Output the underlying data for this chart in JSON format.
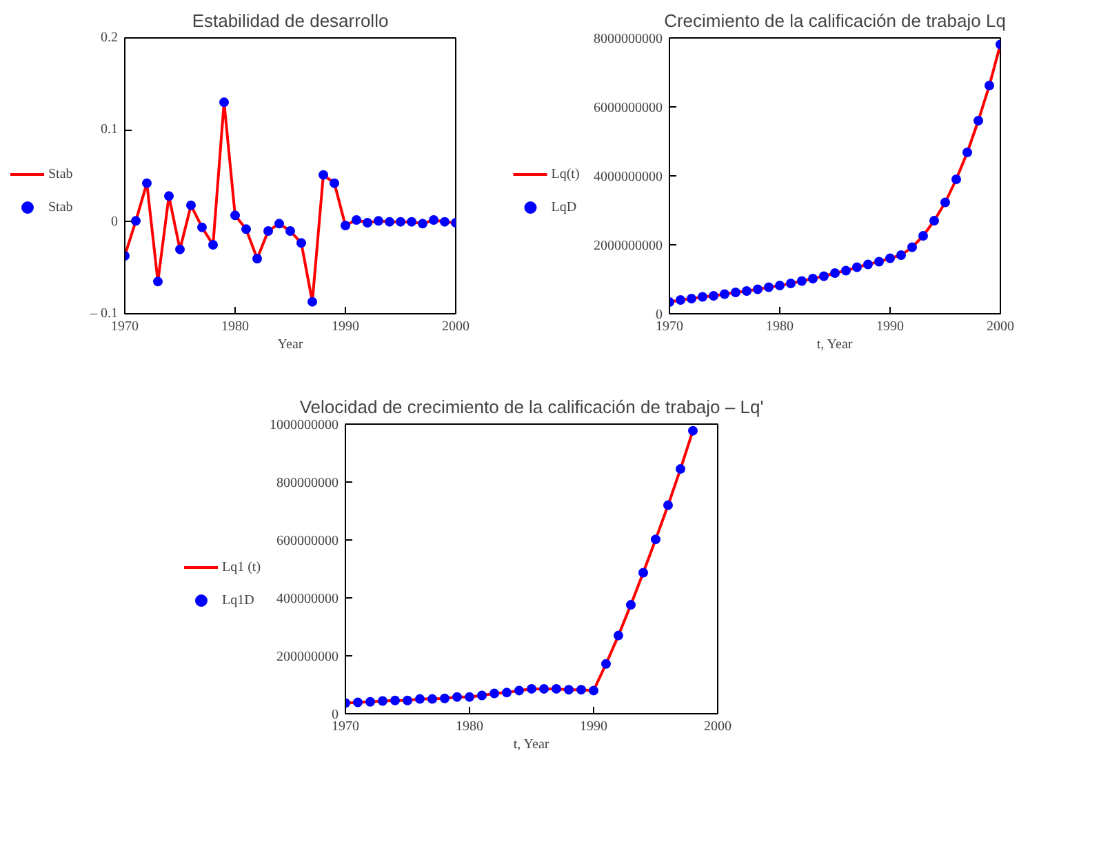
{
  "chart_data": [
    {
      "type": "line",
      "title": "Estabilidad de desarrollo",
      "xlabel": "Year",
      "x": [
        1970,
        1971,
        1972,
        1973,
        1974,
        1975,
        1976,
        1977,
        1978,
        1979,
        1980,
        1981,
        1982,
        1983,
        1984,
        1985,
        1986,
        1987,
        1988,
        1989,
        1990,
        1991,
        1992,
        1993,
        1994,
        1995,
        1996,
        1997,
        1998,
        1999,
        2000
      ],
      "series": [
        {
          "name": "Stab",
          "color": "#ff0000",
          "values": [
            -0.037,
            0.001,
            0.042,
            -0.065,
            0.028,
            -0.03,
            0.018,
            -0.006,
            -0.025,
            0.13,
            0.007,
            -0.008,
            -0.04,
            -0.01,
            -0.002,
            -0.01,
            -0.023,
            -0.087,
            0.051,
            0.042,
            -0.004,
            0.002,
            -0.001,
            0.001,
            0,
            0,
            0,
            -0.002,
            0.002,
            0,
            -0.001
          ]
        },
        {
          "name": "Stab",
          "type": "scatter",
          "marker": "circle",
          "color": "#0000ff",
          "values": [
            -0.037,
            0.001,
            0.042,
            -0.065,
            0.028,
            -0.03,
            0.018,
            -0.006,
            -0.025,
            0.13,
            0.007,
            -0.008,
            -0.04,
            -0.01,
            -0.002,
            -0.01,
            -0.023,
            -0.087,
            0.051,
            0.042,
            -0.004,
            0.002,
            -0.001,
            0.001,
            0,
            0,
            0,
            -0.002,
            0.002,
            0,
            -0.001
          ]
        }
      ],
      "xlim": [
        1970,
        2000
      ],
      "xticks": [
        1970,
        1980,
        1990,
        2000
      ],
      "ylim": [
        -0.1,
        0.2
      ],
      "yticks": [
        {
          "value": -0.1,
          "label": "– 0.1"
        },
        0,
        0.1,
        0.2
      ],
      "grid": false,
      "legend": "left",
      "line_style": "solid"
    },
    {
      "type": "line",
      "title": "Crecimiento de la calificación de trabajo Lq",
      "xlabel": "t, Year",
      "x": [
        1970,
        1971,
        1972,
        1973,
        1974,
        1975,
        1976,
        1977,
        1978,
        1979,
        1980,
        1981,
        1982,
        1983,
        1984,
        1985,
        1986,
        1987,
        1988,
        1989,
        1990,
        1991,
        1992,
        1993,
        1994,
        1995,
        1996,
        1997,
        1998,
        1999,
        2000
      ],
      "series": [
        {
          "name": "Lq(t)",
          "color": "#ff0000",
          "values": [
            340000000,
            400000000,
            440000000,
            490000000,
            520000000,
            570000000,
            620000000,
            660000000,
            710000000,
            770000000,
            820000000,
            880000000,
            950000000,
            1020000000,
            1090000000,
            1180000000,
            1250000000,
            1350000000,
            1430000000,
            1510000000,
            1610000000,
            1700000000,
            1930000000,
            2260000000,
            2700000000,
            3230000000,
            3900000000,
            4680000000,
            5600000000,
            6620000000,
            7810000000
          ]
        },
        {
          "name": "LqD",
          "type": "scatter",
          "marker": "circle",
          "color": "#0000ff",
          "values": [
            340000000,
            400000000,
            440000000,
            490000000,
            520000000,
            570000000,
            620000000,
            660000000,
            710000000,
            770000000,
            820000000,
            880000000,
            950000000,
            1020000000,
            1090000000,
            1180000000,
            1250000000,
            1350000000,
            1430000000,
            1510000000,
            1610000000,
            1700000000,
            1930000000,
            2260000000,
            2700000000,
            3230000000,
            3900000000,
            4680000000,
            5600000000,
            6620000000,
            7810000000
          ]
        }
      ],
      "xlim": [
        1970,
        2000
      ],
      "xticks": [
        1970,
        1980,
        1990,
        2000
      ],
      "ylim": [
        0,
        8000000000
      ],
      "yticks": [
        0,
        2000000000,
        4000000000,
        6000000000,
        8000000000
      ],
      "grid": false,
      "legend": "left",
      "line_style": "solid"
    },
    {
      "type": "line",
      "title": "Velocidad de crecimiento de la calificación de trabajo – Lq'",
      "xlabel": "t, Year",
      "x": [
        1970,
        1971,
        1972,
        1973,
        1974,
        1975,
        1976,
        1977,
        1978,
        1979,
        1980,
        1981,
        1982,
        1983,
        1984,
        1985,
        1986,
        1987,
        1988,
        1989,
        1990,
        1991,
        1992,
        1993,
        1994,
        1995,
        1996,
        1997,
        1998
      ],
      "series": [
        {
          "name": "Lq1 (t)",
          "color": "#ff0000",
          "values": [
            37000000,
            39000000,
            41000000,
            44000000,
            46000000,
            46000000,
            51000000,
            51000000,
            53000000,
            58000000,
            58000000,
            63000000,
            70000000,
            73000000,
            80000000,
            86000000,
            86000000,
            86000000,
            83000000,
            83000000,
            80000000,
            172000000,
            270000000,
            376000000,
            487000000,
            602000000,
            720000000,
            845000000,
            977000000
          ]
        },
        {
          "name": "Lq1D",
          "type": "scatter",
          "marker": "circle",
          "color": "#0000ff",
          "values": [
            37000000,
            39000000,
            41000000,
            44000000,
            46000000,
            46000000,
            51000000,
            51000000,
            53000000,
            58000000,
            58000000,
            63000000,
            70000000,
            73000000,
            80000000,
            86000000,
            86000000,
            86000000,
            83000000,
            83000000,
            80000000,
            172000000,
            270000000,
            376000000,
            487000000,
            602000000,
            720000000,
            845000000,
            977000000
          ]
        }
      ],
      "xlim": [
        1970,
        2000
      ],
      "xticks": [
        1970,
        1980,
        1990,
        2000
      ],
      "ylim": [
        0,
        1000000000
      ],
      "yticks": [
        0,
        200000000,
        400000000,
        600000000,
        800000000,
        1000000000
      ],
      "grid": false,
      "legend": "left",
      "line_style": "solid"
    }
  ]
}
